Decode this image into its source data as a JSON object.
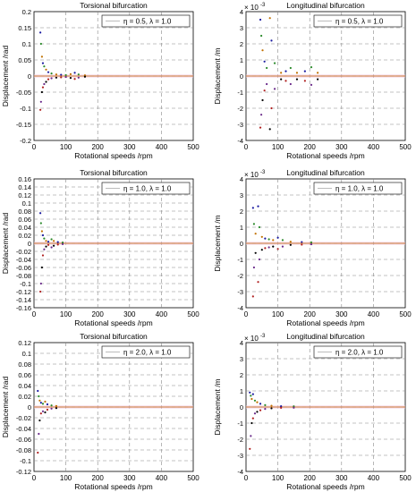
{
  "chart_data": [
    {
      "type": "scatter",
      "title": "Torsional bifurcation",
      "xlabel": "Rotational speeds /rpm",
      "ylabel": "Displacement /rad",
      "xlim": [
        0,
        500
      ],
      "ylim": [
        -0.2,
        0.2
      ],
      "xticks": [
        "0",
        "100",
        "200",
        "300",
        "400",
        "500"
      ],
      "yticks": [
        "-0.2",
        "-0.15",
        "-0.1",
        "-0.05",
        "0",
        "0.05",
        "0.1",
        "0.15",
        "0.2"
      ],
      "y_exponent": "",
      "legend": "η = 0.5,  λ = 1.0",
      "legend_position": "top-right",
      "grid": true,
      "points": [
        [
          20,
          0.135
        ],
        [
          20,
          -0.105
        ],
        [
          22,
          0.1
        ],
        [
          22,
          -0.08
        ],
        [
          25,
          0.06
        ],
        [
          25,
          -0.05
        ],
        [
          28,
          0.04
        ],
        [
          28,
          -0.035
        ],
        [
          32,
          0.03
        ],
        [
          32,
          -0.025
        ],
        [
          38,
          0.02
        ],
        [
          38,
          -0.018
        ],
        [
          45,
          0.012
        ],
        [
          45,
          -0.01
        ],
        [
          55,
          0.008
        ],
        [
          55,
          -0.007
        ],
        [
          70,
          0.005
        ],
        [
          70,
          -0.005
        ],
        [
          85,
          0.004
        ],
        [
          85,
          -0.004
        ],
        [
          100,
          0.003
        ],
        [
          100,
          -0.003
        ],
        [
          115,
          0.006
        ],
        [
          115,
          -0.006
        ],
        [
          128,
          0.01
        ],
        [
          128,
          -0.009
        ],
        [
          140,
          0.005
        ],
        [
          140,
          -0.005
        ],
        [
          160,
          0.002
        ],
        [
          160,
          -0.002
        ]
      ]
    },
    {
      "type": "scatter",
      "title": "Longitudinal bifurcation",
      "xlabel": "Rotational speeds /rpm",
      "ylabel": "Displacement /m",
      "xlim": [
        0,
        500
      ],
      "ylim": [
        -4,
        4
      ],
      "xticks": [
        "0",
        "100",
        "200",
        "300",
        "400",
        "500"
      ],
      "yticks": [
        "-4",
        "-3",
        "-2",
        "-1",
        "0",
        "1",
        "2",
        "3",
        "4"
      ],
      "y_exponent": "-3",
      "legend": "η = 0.5,  λ = 1.0",
      "legend_position": "top-right",
      "grid": true,
      "points": [
        [
          45,
          3.5
        ],
        [
          45,
          -3.2
        ],
        [
          48,
          2.5
        ],
        [
          48,
          -2.4
        ],
        [
          52,
          1.6
        ],
        [
          52,
          -1.5
        ],
        [
          58,
          0.9
        ],
        [
          58,
          -0.9
        ],
        [
          65,
          0.5
        ],
        [
          65,
          -0.5
        ],
        [
          75,
          3.6
        ],
        [
          75,
          -3.3
        ],
        [
          80,
          2.2
        ],
        [
          80,
          -2.0
        ],
        [
          90,
          0.8
        ],
        [
          90,
          -0.8
        ],
        [
          110,
          0.2
        ],
        [
          110,
          -0.2
        ],
        [
          125,
          0.3
        ],
        [
          125,
          -0.3
        ],
        [
          140,
          0.5
        ],
        [
          140,
          -0.5
        ],
        [
          160,
          0.2
        ],
        [
          160,
          -0.2
        ],
        [
          185,
          0.3
        ],
        [
          185,
          -0.3
        ],
        [
          205,
          0.55
        ],
        [
          205,
          -0.55
        ],
        [
          225,
          0.2
        ],
        [
          225,
          -0.2
        ]
      ]
    },
    {
      "type": "scatter",
      "title": "Torsional bifurcation",
      "xlabel": "Rotational speeds /rpm",
      "ylabel": "Displacement /rad",
      "xlim": [
        0,
        500
      ],
      "ylim": [
        -0.16,
        0.16
      ],
      "xticks": [
        "0",
        "100",
        "200",
        "300",
        "400",
        "500"
      ],
      "yticks": [
        "-0.16",
        "-0.14",
        "-0.12",
        "-0.1",
        "-0.08",
        "-0.06",
        "-0.04",
        "-0.02",
        "0",
        "0.02",
        "0.04",
        "0.06",
        "0.08",
        "0.1",
        "0.12",
        "0.14",
        "0.16"
      ],
      "y_exponent": "",
      "legend": "η = 1.0,  λ = 1.0",
      "legend_position": "top-right",
      "grid": true,
      "points": [
        [
          20,
          0.075
        ],
        [
          20,
          -0.12
        ],
        [
          22,
          0.05
        ],
        [
          22,
          -0.1
        ],
        [
          25,
          0.03
        ],
        [
          25,
          -0.06
        ],
        [
          28,
          0.02
        ],
        [
          28,
          -0.03
        ],
        [
          32,
          0.012
        ],
        [
          32,
          -0.015
        ],
        [
          38,
          0.006
        ],
        [
          38,
          -0.008
        ],
        [
          45,
          0.004
        ],
        [
          45,
          -0.004
        ],
        [
          55,
          0.01
        ],
        [
          55,
          -0.01
        ],
        [
          62,
          0.006
        ],
        [
          62,
          -0.006
        ],
        [
          75,
          0.003
        ],
        [
          75,
          -0.003
        ],
        [
          90,
          0.002
        ],
        [
          90,
          -0.002
        ]
      ]
    },
    {
      "type": "scatter",
      "title": "Longitudinal bifurcation",
      "xlabel": "Rotational speeds /rpm",
      "ylabel": "Displacement /m",
      "xlim": [
        0,
        500
      ],
      "ylim": [
        -4,
        4
      ],
      "xticks": [
        "0",
        "100",
        "200",
        "300",
        "400",
        "500"
      ],
      "yticks": [
        "-4",
        "-3",
        "-2",
        "-1",
        "0",
        "1",
        "2",
        "3",
        "4"
      ],
      "y_exponent": "-3",
      "legend": "η = 1.0,  λ = 1.0",
      "legend_position": "top-right",
      "grid": true,
      "points": [
        [
          22,
          2.2
        ],
        [
          22,
          -3.3
        ],
        [
          25,
          1.2
        ],
        [
          25,
          -1.5
        ],
        [
          30,
          0.6
        ],
        [
          30,
          -0.6
        ],
        [
          38,
          2.3
        ],
        [
          38,
          -2.4
        ],
        [
          42,
          1.0
        ],
        [
          42,
          -1.0
        ],
        [
          50,
          0.4
        ],
        [
          50,
          -0.4
        ],
        [
          60,
          0.3
        ],
        [
          60,
          -0.3
        ],
        [
          72,
          0.25
        ],
        [
          72,
          -0.25
        ],
        [
          85,
          0.2
        ],
        [
          85,
          -0.2
        ],
        [
          100,
          0.35
        ],
        [
          100,
          -0.35
        ],
        [
          115,
          0.2
        ],
        [
          115,
          -0.2
        ],
        [
          140,
          0.1
        ],
        [
          140,
          -0.1
        ],
        [
          175,
          0.08
        ],
        [
          175,
          -0.08
        ],
        [
          205,
          0.06
        ],
        [
          205,
          -0.06
        ]
      ]
    },
    {
      "type": "scatter",
      "title": "Torsional bifurcation",
      "xlabel": "Rotational speeds /rpm",
      "ylabel": "Displacement /rad",
      "xlim": [
        0,
        500
      ],
      "ylim": [
        -0.12,
        0.12
      ],
      "xticks": [
        "0",
        "100",
        "200",
        "300",
        "400",
        "500"
      ],
      "yticks": [
        "-0.12",
        "-0.1",
        "-0.08",
        "-0.06",
        "-0.04",
        "-0.02",
        "0",
        "0.02",
        "0.04",
        "0.06",
        "0.08",
        "0.1",
        "0.12"
      ],
      "y_exponent": "",
      "legend": "η = 2.0,  λ = 1.0",
      "legend_position": "top-right",
      "grid": true,
      "points": [
        [
          12,
          0.03
        ],
        [
          12,
          -0.085
        ],
        [
          15,
          0.02
        ],
        [
          15,
          -0.05
        ],
        [
          18,
          0.012
        ],
        [
          18,
          -0.025
        ],
        [
          22,
          0.008
        ],
        [
          22,
          -0.012
        ],
        [
          28,
          0.006
        ],
        [
          28,
          -0.008
        ],
        [
          35,
          0.01
        ],
        [
          35,
          -0.01
        ],
        [
          42,
          0.005
        ],
        [
          42,
          -0.005
        ],
        [
          55,
          0.003
        ],
        [
          55,
          -0.003
        ],
        [
          70,
          0.002
        ],
        [
          70,
          -0.002
        ]
      ]
    },
    {
      "type": "scatter",
      "title": "Longitudinal bifurcation",
      "xlabel": "Rotational speeds /rpm",
      "ylabel": "Displacement /m",
      "xlim": [
        0,
        500
      ],
      "ylim": [
        -4,
        4
      ],
      "xticks": [
        "0",
        "100",
        "200",
        "300",
        "400",
        "500"
      ],
      "yticks": [
        "-4",
        "-3",
        "-2",
        "-1",
        "0",
        "1",
        "2",
        "3",
        "4"
      ],
      "y_exponent": "-3",
      "legend": "η = 2.0,  λ = 1.0",
      "legend_position": "top-right",
      "grid": true,
      "points": [
        [
          12,
          0.9
        ],
        [
          12,
          -2.6
        ],
        [
          15,
          0.7
        ],
        [
          15,
          -1.8
        ],
        [
          18,
          0.5
        ],
        [
          18,
          -1.0
        ],
        [
          22,
          0.8
        ],
        [
          22,
          -0.7
        ],
        [
          28,
          0.4
        ],
        [
          28,
          -0.4
        ],
        [
          35,
          0.3
        ],
        [
          35,
          -0.3
        ],
        [
          45,
          0.2
        ],
        [
          45,
          -0.2
        ],
        [
          60,
          0.12
        ],
        [
          60,
          -0.12
        ],
        [
          80,
          0.08
        ],
        [
          80,
          -0.08
        ],
        [
          110,
          0.05
        ],
        [
          110,
          -0.05
        ],
        [
          150,
          0.04
        ],
        [
          150,
          -0.04
        ]
      ]
    }
  ]
}
